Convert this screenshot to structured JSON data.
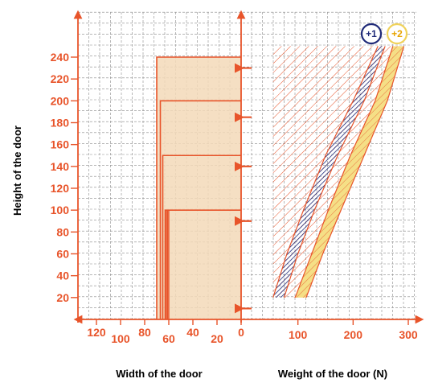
{
  "chart_data": {
    "type": "area",
    "ylabel": "Height of the door",
    "ylim": [
      0,
      250
    ],
    "y_ticks": [
      "20",
      "40",
      "60",
      "80",
      "100",
      "120",
      "140",
      "160",
      "180",
      "200",
      "220",
      "240"
    ],
    "width_panel": {
      "xlabel": "Width of the door",
      "xlim": [
        140,
        0
      ],
      "x_ticks": [
        "120",
        "100",
        "80",
        "60",
        "40",
        "20",
        "0"
      ],
      "tick_values": [
        120,
        100,
        80,
        60,
        40,
        20,
        0
      ],
      "door_rectangles": [
        {
          "width": 70,
          "height": 240
        },
        {
          "width": 67,
          "height": 200
        },
        {
          "width": 65,
          "height": 150
        },
        {
          "width": 63,
          "height": 100
        }
      ],
      "extra_width_lines": [
        62,
        61,
        60
      ],
      "pivot_marker_heights": [
        10,
        90,
        140,
        185,
        230
      ]
    },
    "weight_panel": {
      "xlabel": "Weight of the door (N)",
      "xlim": [
        0,
        300
      ],
      "x_ticks": [
        "100",
        "200",
        "300"
      ],
      "tick_values": [
        100,
        200,
        300
      ],
      "series": [
        {
          "name": "+1",
          "color": "#1f2a78",
          "lower": [
            [
              55,
              20
            ],
            [
              80,
              60
            ],
            [
              110,
              100
            ],
            [
              150,
              150
            ],
            [
              200,
              200
            ],
            [
              245,
              250
            ]
          ],
          "upper": [
            [
              75,
              20
            ],
            [
              100,
              60
            ],
            [
              130,
              100
            ],
            [
              172,
              150
            ],
            [
              220,
              200
            ],
            [
              258,
              250
            ]
          ]
        },
        {
          "name": "+2",
          "color": "#f0d25a",
          "lower": [
            [
              95,
              20
            ],
            [
              125,
              60
            ],
            [
              155,
              100
            ],
            [
              195,
              150
            ],
            [
              240,
              200
            ],
            [
              272,
              250
            ]
          ],
          "upper": [
            [
              115,
              20
            ],
            [
              145,
              60
            ],
            [
              178,
              100
            ],
            [
              220,
              150
            ],
            [
              262,
              200
            ],
            [
              292,
              250
            ]
          ]
        }
      ],
      "hatched_region": {
        "x_min": 55,
        "y_min": 20,
        "y_max": 250
      }
    },
    "colors": {
      "accent": "#e8542a",
      "door_fill": "#f3d9b8",
      "grid": "#8a8a8a"
    }
  }
}
